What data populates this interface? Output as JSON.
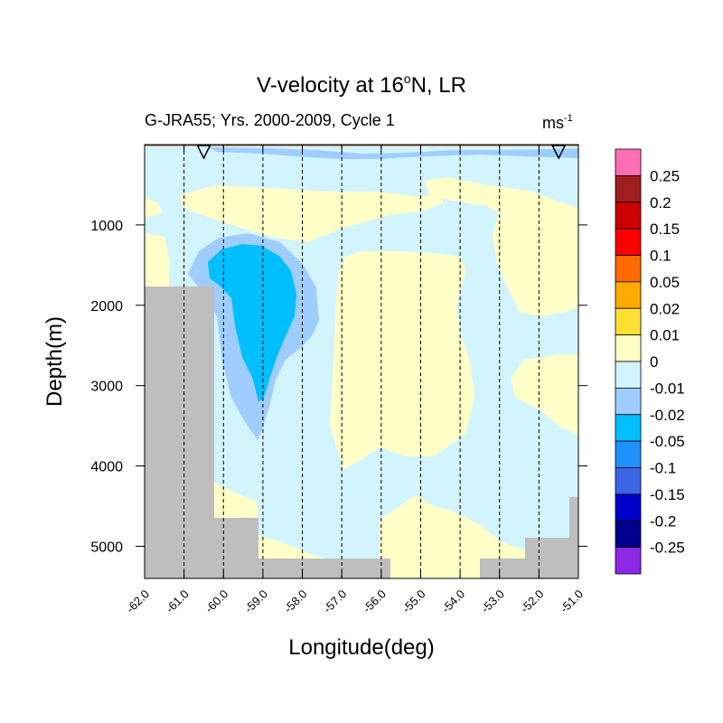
{
  "chart_data": {
    "type": "heatmap",
    "title": "V-velocity at 16",
    "title_superscript": "o",
    "title_suffix": "N, LR",
    "subtitle_left": "G-JRA55; Yrs. 2000-2009, Cycle 1",
    "units": "ms",
    "units_superscript": "-1",
    "xlabel": "Longitude(deg)",
    "ylabel": "Depth(m)",
    "xlim": [
      -62.0,
      -51.0
    ],
    "ylim": [
      5400,
      0
    ],
    "x_ticks": [
      -62.0,
      -61.0,
      -60.0,
      -59.0,
      -58.0,
      -57.0,
      -56.0,
      -55.0,
      -54.0,
      -53.0,
      -52.0,
      -51.0
    ],
    "x_tick_labels": [
      "-62.0",
      "-61.0",
      "-60.0",
      "-59.0",
      "-58.0",
      "-57.0",
      "-56.0",
      "-55.0",
      "-54.0",
      "-53.0",
      "-52.0",
      "-51.0"
    ],
    "y_ticks": [
      1000,
      2000,
      3000,
      4000,
      5000
    ],
    "y_tick_labels": [
      "1000",
      "2000",
      "3000",
      "4000",
      "5000"
    ],
    "gridlines": "vertical dashed at each longitude tick",
    "station_markers_lon": [
      -60.5,
      -51.5
    ],
    "colorbar": {
      "labels": [
        "0.25",
        "0.2",
        "0.15",
        "0.1",
        "0.05",
        "0.02",
        "0.01",
        "0",
        "-0.01",
        "-0.02",
        "-0.05",
        "-0.1",
        "-0.15",
        "-0.2",
        "-0.25"
      ],
      "colors": [
        "#ff6eb4",
        "#a01e1e",
        "#cc0000",
        "#ff0000",
        "#ff6a00",
        "#ffaa00",
        "#ffe033",
        "#ffffc8",
        "#d2f4fc",
        "#a0cdff",
        "#00bfff",
        "#1e90ff",
        "#3c64e6",
        "#0000cd",
        "#00008c",
        "#8c28e6"
      ]
    },
    "field_colors": {
      "pos_0_0.01": "#ffffc8",
      "neg_0_0.01": "#d2f4fc",
      "neg_0.01_0.02": "#a0cdff",
      "neg_0.02_0.05": "#00bfff",
      "bathymetry": "#bebebe",
      "surface_line": "#a0522d"
    },
    "bathymetry": [
      {
        "lon": [
          -62.0,
          -60.25
        ],
        "depth_top": 1770
      },
      {
        "lon": [
          -60.25,
          -59.1
        ],
        "depth_top": 4620
      },
      {
        "lon": [
          -59.1,
          -55.7
        ],
        "depth_top": 5120
      },
      {
        "lon": [
          -53.6,
          -52.5
        ],
        "depth_top": 5120
      },
      {
        "lon": [
          -52.5,
          -51.25
        ],
        "depth_top": 4880
      },
      {
        "lon": [
          -51.25,
          -51.0
        ],
        "depth_top": 4370
      }
    ],
    "core_min_velocity_region": {
      "lon_range": [
        -60.3,
        -59.0
      ],
      "depth_range": [
        1400,
        3150
      ],
      "value_band": "-0.02 to -0.05"
    }
  }
}
